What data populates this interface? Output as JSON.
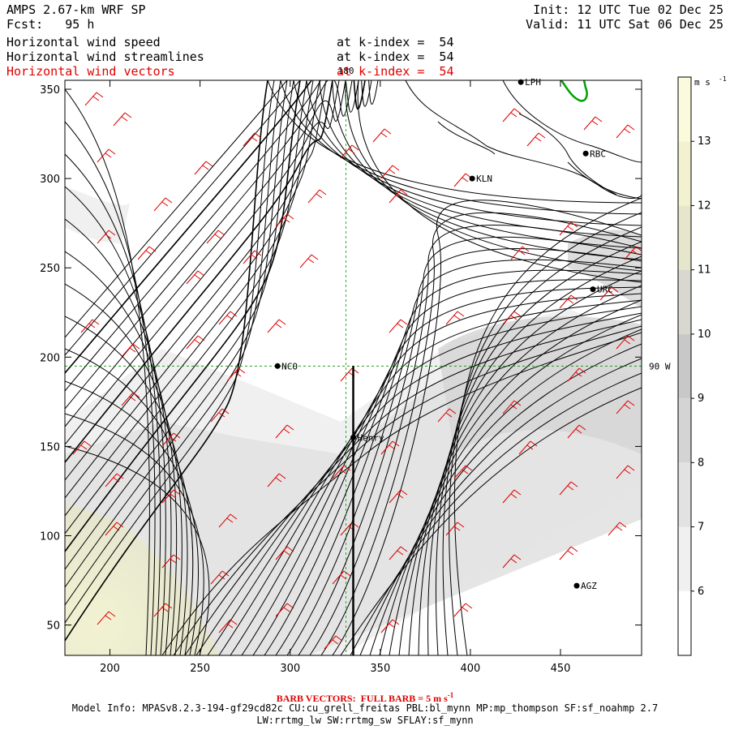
{
  "header": {
    "model_title": "AMPS 2.67-km WRF SP",
    "forecast": "Fcst:   95 h",
    "init": "Init: 12 UTC Tue 02 Dec 25",
    "valid": "Valid: 11 UTC Sat 06 Dec 25",
    "fields": [
      {
        "name": "Horizontal wind speed",
        "level": "at k-index =  54",
        "color": "#000000"
      },
      {
        "name": "Horizontal wind streamlines",
        "level": "at k-index =  54",
        "color": "#000000"
      },
      {
        "name": "Horizontal wind vectors",
        "level": "at k-index =  54",
        "color": "#e00000"
      }
    ]
  },
  "footer": {
    "barb_note": "BARB VECTORS:  FULL BARB = 5 m s",
    "barb_exp": "-1",
    "model_info": "Model Info: MPASv8.2.3-194-gf29cd82c CU:cu_grell_freitas PBL:bl_mynn MP:mp_thompson SF:sf_noahmp 2.7",
    "model_info2": "LW:rrtmg_lw SW:rrtmg_sw SFLAY:sf_mynn"
  },
  "chart_data": {
    "type": "heatmap",
    "title": "Horizontal wind speed",
    "xlabel": "",
    "ylabel": "",
    "xlim": [
      175,
      495
    ],
    "ylim": [
      33,
      355
    ],
    "x_ticks": [
      200,
      250,
      300,
      350,
      400,
      450
    ],
    "y_ticks": [
      50,
      100,
      150,
      200,
      250,
      300,
      350
    ],
    "colorbar": {
      "unit": "m s",
      "unit_exp": "-1",
      "levels": [
        6,
        7,
        8,
        9,
        10,
        11,
        12,
        13
      ],
      "range": [
        5,
        14
      ],
      "colors": [
        "#ffffff",
        "#f0f0f0",
        "#e2e2e2",
        "#d4d4d4",
        "#c8c8c8",
        "#d8d8d0",
        "#e6e6cc",
        "#f2f2d0",
        "#fafadc"
      ]
    },
    "stations": [
      {
        "label": "NCO",
        "x": 293,
        "y": 195
      },
      {
        "label": "Henry",
        "x": 335,
        "y": 155
      },
      {
        "label": "KLN",
        "x": 401,
        "y": 300
      },
      {
        "label": "RBC",
        "x": 464,
        "y": 314
      },
      {
        "label": "URC",
        "x": 468,
        "y": 238
      },
      {
        "label": "AGZ",
        "x": 459,
        "y": 72
      },
      {
        "label": "LPH",
        "x": 428,
        "y": 354
      }
    ],
    "reference_lines": [
      {
        "orientation": "vertical",
        "x": 331,
        "label": "180"
      },
      {
        "orientation": "horizontal",
        "y": 195,
        "label": "90 W"
      }
    ],
    "cross_section_line": {
      "x": 335,
      "y": [
        33,
        195
      ]
    }
  }
}
